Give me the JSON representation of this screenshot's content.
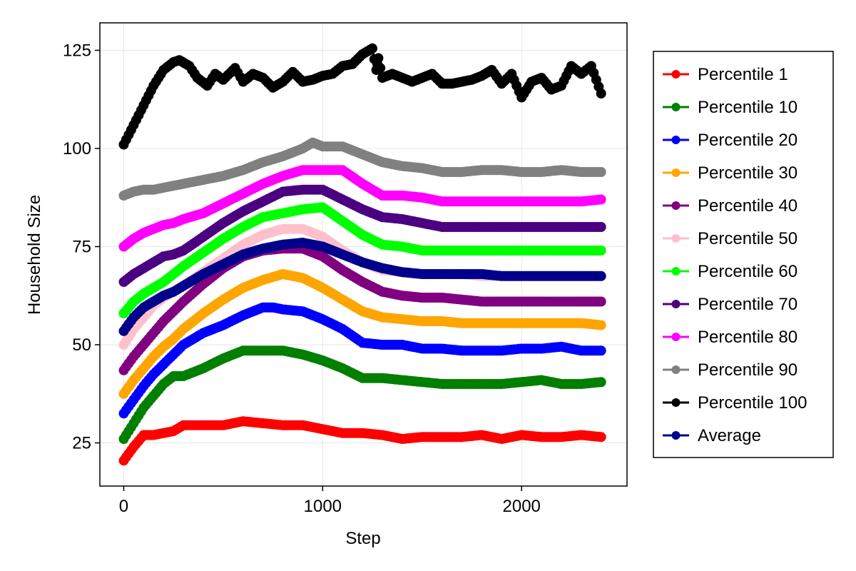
{
  "chart_data": {
    "type": "scatter",
    "title": "",
    "xlabel": "Step",
    "ylabel": "Household Size",
    "xlim": [
      -120,
      2530
    ],
    "ylim": [
      14,
      132
    ],
    "xticks": [
      0,
      1000,
      2000
    ],
    "yticks": [
      25,
      50,
      75,
      100,
      125
    ],
    "xtick_labels": [
      "0",
      "1000",
      "2000"
    ],
    "ytick_labels": [
      "25",
      "50",
      "75",
      "100",
      "125"
    ],
    "grid": true,
    "legend_position": "right",
    "mode": "lines+markers",
    "series": [
      {
        "name": "Percentile 1",
        "color": "#ff0000",
        "x": [
          0,
          50,
          100,
          150,
          200,
          250,
          300,
          400,
          500,
          600,
          700,
          800,
          900,
          1000,
          1100,
          1200,
          1300,
          1400,
          1500,
          1600,
          1700,
          1800,
          1900,
          2000,
          2100,
          2200,
          2300,
          2400
        ],
        "y": [
          20.5,
          24,
          27,
          27,
          27.5,
          28,
          29.5,
          29.5,
          29.5,
          30.5,
          30,
          29.5,
          29.5,
          28.5,
          27.5,
          27.5,
          27,
          26,
          26.5,
          26.5,
          26.5,
          27,
          26,
          27,
          26.5,
          26.5,
          27,
          26.5
        ]
      },
      {
        "name": "Percentile 10",
        "color": "#007f00",
        "x": [
          0,
          50,
          100,
          150,
          200,
          250,
          300,
          400,
          500,
          600,
          700,
          800,
          900,
          1000,
          1100,
          1200,
          1300,
          1400,
          1500,
          1600,
          1700,
          1800,
          1900,
          2000,
          2100,
          2200,
          2300,
          2400
        ],
        "y": [
          26,
          30,
          34,
          37,
          40,
          42,
          42,
          44,
          46.5,
          48.5,
          48.5,
          48.5,
          47.5,
          46,
          44,
          41.5,
          41.5,
          41,
          40.5,
          40,
          40,
          40,
          40,
          40.5,
          41,
          40,
          40,
          40.5
        ]
      },
      {
        "name": "Percentile 20",
        "color": "#0000ff",
        "x": [
          0,
          50,
          100,
          150,
          200,
          250,
          300,
          400,
          500,
          600,
          700,
          750,
          800,
          900,
          1000,
          1100,
          1200,
          1300,
          1400,
          1500,
          1600,
          1700,
          1800,
          1900,
          2000,
          2100,
          2200,
          2300,
          2400
        ],
        "y": [
          32.5,
          36,
          39.5,
          42.5,
          45,
          47.5,
          50,
          53,
          55,
          57.5,
          59.5,
          59.5,
          59,
          58.5,
          56.5,
          54,
          50.5,
          50,
          50,
          49,
          49,
          48.5,
          48.5,
          48.5,
          49,
          49,
          49.5,
          48.5,
          48.5
        ]
      },
      {
        "name": "Percentile 30",
        "color": "#ffa500",
        "x": [
          0,
          50,
          100,
          150,
          200,
          250,
          300,
          400,
          500,
          600,
          700,
          800,
          900,
          1000,
          1100,
          1200,
          1300,
          1400,
          1500,
          1600,
          1700,
          1800,
          1900,
          2000,
          2100,
          2200,
          2300,
          2400
        ],
        "y": [
          37.5,
          41,
          44,
          47,
          49.5,
          51.5,
          54,
          58,
          61.5,
          64.5,
          66.5,
          68,
          67,
          64.5,
          61.5,
          58.5,
          57,
          56.5,
          56,
          56,
          55.5,
          55.5,
          55.5,
          55.5,
          55.5,
          55.5,
          55.5,
          55
        ]
      },
      {
        "name": "Percentile 40",
        "color": "#800080",
        "x": [
          0,
          50,
          100,
          150,
          200,
          250,
          300,
          400,
          500,
          600,
          700,
          800,
          900,
          1000,
          1100,
          1200,
          1300,
          1400,
          1500,
          1600,
          1700,
          1800,
          1900,
          2000,
          2100,
          2200,
          2300,
          2400
        ],
        "y": [
          43.5,
          47,
          50,
          53,
          56,
          58.5,
          61,
          65.5,
          69.5,
          72.5,
          74,
          74.5,
          74.5,
          72.5,
          69,
          66,
          63.5,
          62.5,
          62,
          62,
          61.5,
          61,
          61,
          61,
          61,
          61,
          61,
          61
        ]
      },
      {
        "name": "Percentile 50",
        "color": "#ffc0cb",
        "x": [
          0,
          50,
          100,
          150,
          200,
          250,
          300,
          400,
          500,
          600,
          700,
          800,
          900,
          1000,
          1100,
          1200,
          1300,
          1400,
          1500,
          1600,
          1700,
          1800,
          1900,
          2000,
          2100,
          2200,
          2300,
          2400
        ],
        "y": [
          50,
          54,
          57,
          60,
          62,
          63.5,
          65,
          68.5,
          72,
          75.5,
          78,
          79.5,
          79.5,
          77.5,
          74,
          71,
          69,
          68.5,
          68,
          68,
          68,
          67.5,
          67.5,
          67.5,
          67.5,
          67.5,
          67.5,
          67.5
        ]
      },
      {
        "name": "Percentile 60",
        "color": "#00ff00",
        "x": [
          0,
          50,
          100,
          150,
          200,
          250,
          300,
          400,
          500,
          600,
          700,
          800,
          900,
          1000,
          1100,
          1200,
          1300,
          1400,
          1500,
          1600,
          1700,
          1800,
          1900,
          2000,
          2100,
          2200,
          2300,
          2400
        ],
        "y": [
          58,
          61,
          63,
          64.5,
          66,
          68,
          70,
          73.5,
          77,
          80,
          82.5,
          83.5,
          84.5,
          85,
          81.5,
          78,
          75.5,
          75,
          74,
          74,
          74,
          74,
          74,
          74,
          74,
          74,
          74,
          74
        ]
      },
      {
        "name": "Percentile 70",
        "color": "#4b0082",
        "x": [
          0,
          50,
          100,
          150,
          200,
          250,
          300,
          400,
          500,
          600,
          700,
          800,
          900,
          1000,
          1100,
          1200,
          1300,
          1400,
          1500,
          1600,
          1700,
          1800,
          1900,
          2000,
          2100,
          2200,
          2300,
          2400
        ],
        "y": [
          66,
          68,
          69.5,
          71,
          72.5,
          73,
          74,
          77.5,
          81,
          84,
          86.5,
          89,
          89.5,
          89.5,
          87,
          84.5,
          82.5,
          82,
          81,
          80,
          80,
          80,
          80,
          80,
          80,
          80,
          80,
          80
        ]
      },
      {
        "name": "Percentile 80",
        "color": "#ff00ff",
        "x": [
          0,
          50,
          100,
          150,
          200,
          250,
          300,
          400,
          500,
          600,
          700,
          800,
          900,
          1000,
          1100,
          1200,
          1300,
          1400,
          1500,
          1600,
          1700,
          1800,
          1900,
          2000,
          2100,
          2200,
          2300,
          2400
        ],
        "y": [
          75,
          77,
          78.5,
          79.5,
          80.5,
          81,
          82,
          83.5,
          86,
          88.5,
          91,
          93,
          94.5,
          94.5,
          94.5,
          91,
          88,
          88,
          87.5,
          86.5,
          86.5,
          86.5,
          86.5,
          86.5,
          86.5,
          86.5,
          86.5,
          87
        ]
      },
      {
        "name": "Percentile 90",
        "color": "#808080",
        "x": [
          0,
          50,
          100,
          150,
          200,
          250,
          300,
          400,
          500,
          600,
          700,
          800,
          900,
          950,
          1000,
          1100,
          1200,
          1300,
          1400,
          1500,
          1600,
          1700,
          1800,
          1900,
          2000,
          2100,
          2200,
          2300,
          2400
        ],
        "y": [
          88,
          89,
          89.5,
          89.5,
          90,
          90.5,
          91,
          92,
          93,
          94.5,
          96.5,
          98,
          100,
          101.5,
          100.5,
          100.5,
          98.5,
          96.5,
          95.5,
          95,
          94,
          94,
          94.5,
          94.5,
          94,
          94,
          94.5,
          94,
          94
        ]
      },
      {
        "name": "Percentile 100",
        "color": "#000000",
        "x": [
          0,
          50,
          100,
          150,
          200,
          250,
          280,
          330,
          370,
          420,
          460,
          500,
          560,
          600,
          650,
          700,
          750,
          800,
          850,
          900,
          950,
          1000,
          1050,
          1100,
          1150,
          1200,
          1250,
          1270,
          1280,
          1300,
          1350,
          1400,
          1450,
          1500,
          1550,
          1600,
          1650,
          1700,
          1750,
          1800,
          1850,
          1900,
          1950,
          2000,
          2050,
          2100,
          2150,
          2200,
          2250,
          2300,
          2350,
          2400
        ],
        "y": [
          101,
          106,
          111,
          116,
          120,
          122,
          122.5,
          121,
          118,
          116,
          119,
          117.5,
          120.5,
          117,
          119,
          118,
          115.5,
          117,
          119.5,
          117,
          117.5,
          118.5,
          119,
          121,
          121.5,
          124,
          125.5,
          120,
          123,
          118,
          119,
          118,
          117,
          118,
          119,
          116.5,
          116.5,
          117,
          117.5,
          118.5,
          120,
          116.5,
          119,
          113,
          117,
          118,
          115,
          116,
          121,
          119,
          121,
          114
        ]
      },
      {
        "name": "Average",
        "color": "#00008b",
        "x": [
          0,
          50,
          100,
          150,
          200,
          250,
          300,
          400,
          500,
          600,
          700,
          800,
          900,
          1000,
          1100,
          1200,
          1300,
          1400,
          1500,
          1600,
          1700,
          1800,
          1900,
          2000,
          2100,
          2200,
          2300,
          2400
        ],
        "y": [
          53.5,
          57,
          59.5,
          61,
          62.5,
          63.5,
          65,
          68,
          70.5,
          73,
          74.5,
          75.5,
          76,
          75,
          73,
          71,
          69.5,
          68.5,
          68,
          68,
          68,
          68,
          67.5,
          67.5,
          67.5,
          67.5,
          67.5,
          67.5
        ]
      }
    ]
  }
}
